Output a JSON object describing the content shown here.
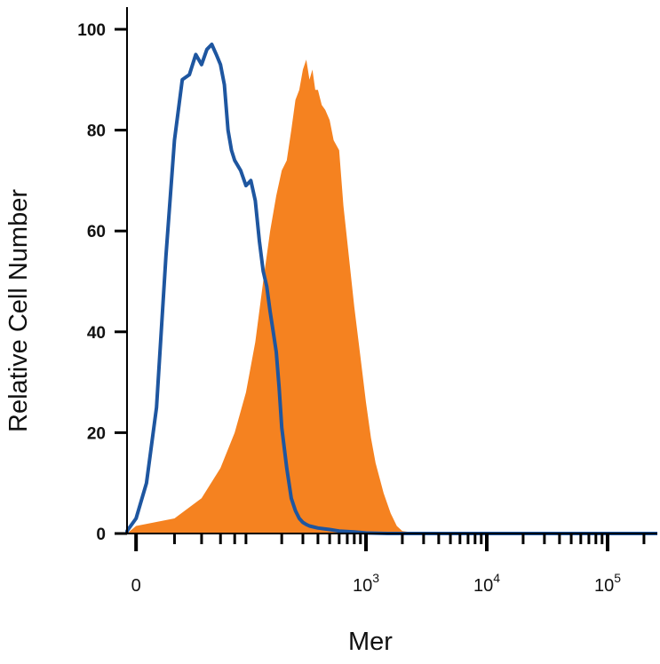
{
  "chart_data": {
    "type": "area",
    "xlabel": "Mer",
    "ylabel": "Relative Cell Number",
    "ylim": [
      0,
      100
    ],
    "yticks": [
      0,
      20,
      40,
      60,
      80,
      100
    ],
    "xscale": "biexponential",
    "xlim": [
      -150,
      300000
    ],
    "xticks": [
      {
        "value": 0,
        "base": "0",
        "exp": ""
      },
      {
        "value": 1000,
        "base": "10",
        "exp": "3"
      },
      {
        "value": 10000,
        "base": "10",
        "exp": "4"
      },
      {
        "value": 100000,
        "base": "10",
        "exp": "5"
      }
    ],
    "grid": false,
    "legend": "none",
    "colors": {
      "filled": "#F58220",
      "outline": "#1E56A0",
      "axis": "#000000"
    },
    "series": [
      {
        "style": "filled",
        "x": [
          -120,
          -40,
          0,
          20,
          40,
          60,
          80,
          100,
          120,
          140,
          160,
          180,
          200,
          220,
          240,
          260,
          280,
          300,
          320,
          340,
          360,
          380,
          400,
          430,
          460,
          500,
          540,
          600,
          650,
          700,
          800,
          900,
          1000,
          1100,
          1200,
          1400,
          1600,
          1800,
          2000,
          2500,
          3000,
          5000,
          300000
        ],
        "y": [
          0,
          0,
          1.5,
          3,
          7,
          13,
          20,
          28,
          38,
          50,
          60,
          67,
          72,
          74,
          80,
          86,
          88,
          92,
          94,
          90,
          92,
          88,
          88,
          85,
          84,
          82,
          78,
          76,
          65,
          58,
          45,
          35,
          26,
          19,
          14,
          8,
          4,
          1.5,
          0.5,
          0.2,
          0,
          0,
          0
        ]
      },
      {
        "style": "outline",
        "x": [
          -120,
          -40,
          -20,
          0,
          5,
          10,
          15,
          20,
          25,
          30,
          35,
          40,
          45,
          50,
          55,
          60,
          65,
          70,
          75,
          80,
          90,
          100,
          110,
          120,
          130,
          140,
          150,
          160,
          170,
          180,
          190,
          200,
          220,
          240,
          260,
          280,
          300,
          320,
          340,
          400,
          500,
          600,
          800,
          1000,
          1500,
          300000
        ],
        "y": [
          0,
          0,
          0.5,
          3,
          10,
          25,
          55,
          78,
          90,
          91,
          95,
          93,
          96,
          97,
          95,
          93,
          89,
          80,
          76,
          74,
          72,
          69,
          70,
          66,
          58,
          52,
          49,
          44,
          40,
          36,
          29,
          21,
          13,
          7,
          4.5,
          3,
          2.2,
          1.8,
          1.5,
          1.1,
          0.8,
          0.5,
          0.3,
          0.1,
          0,
          0
        ]
      }
    ]
  }
}
